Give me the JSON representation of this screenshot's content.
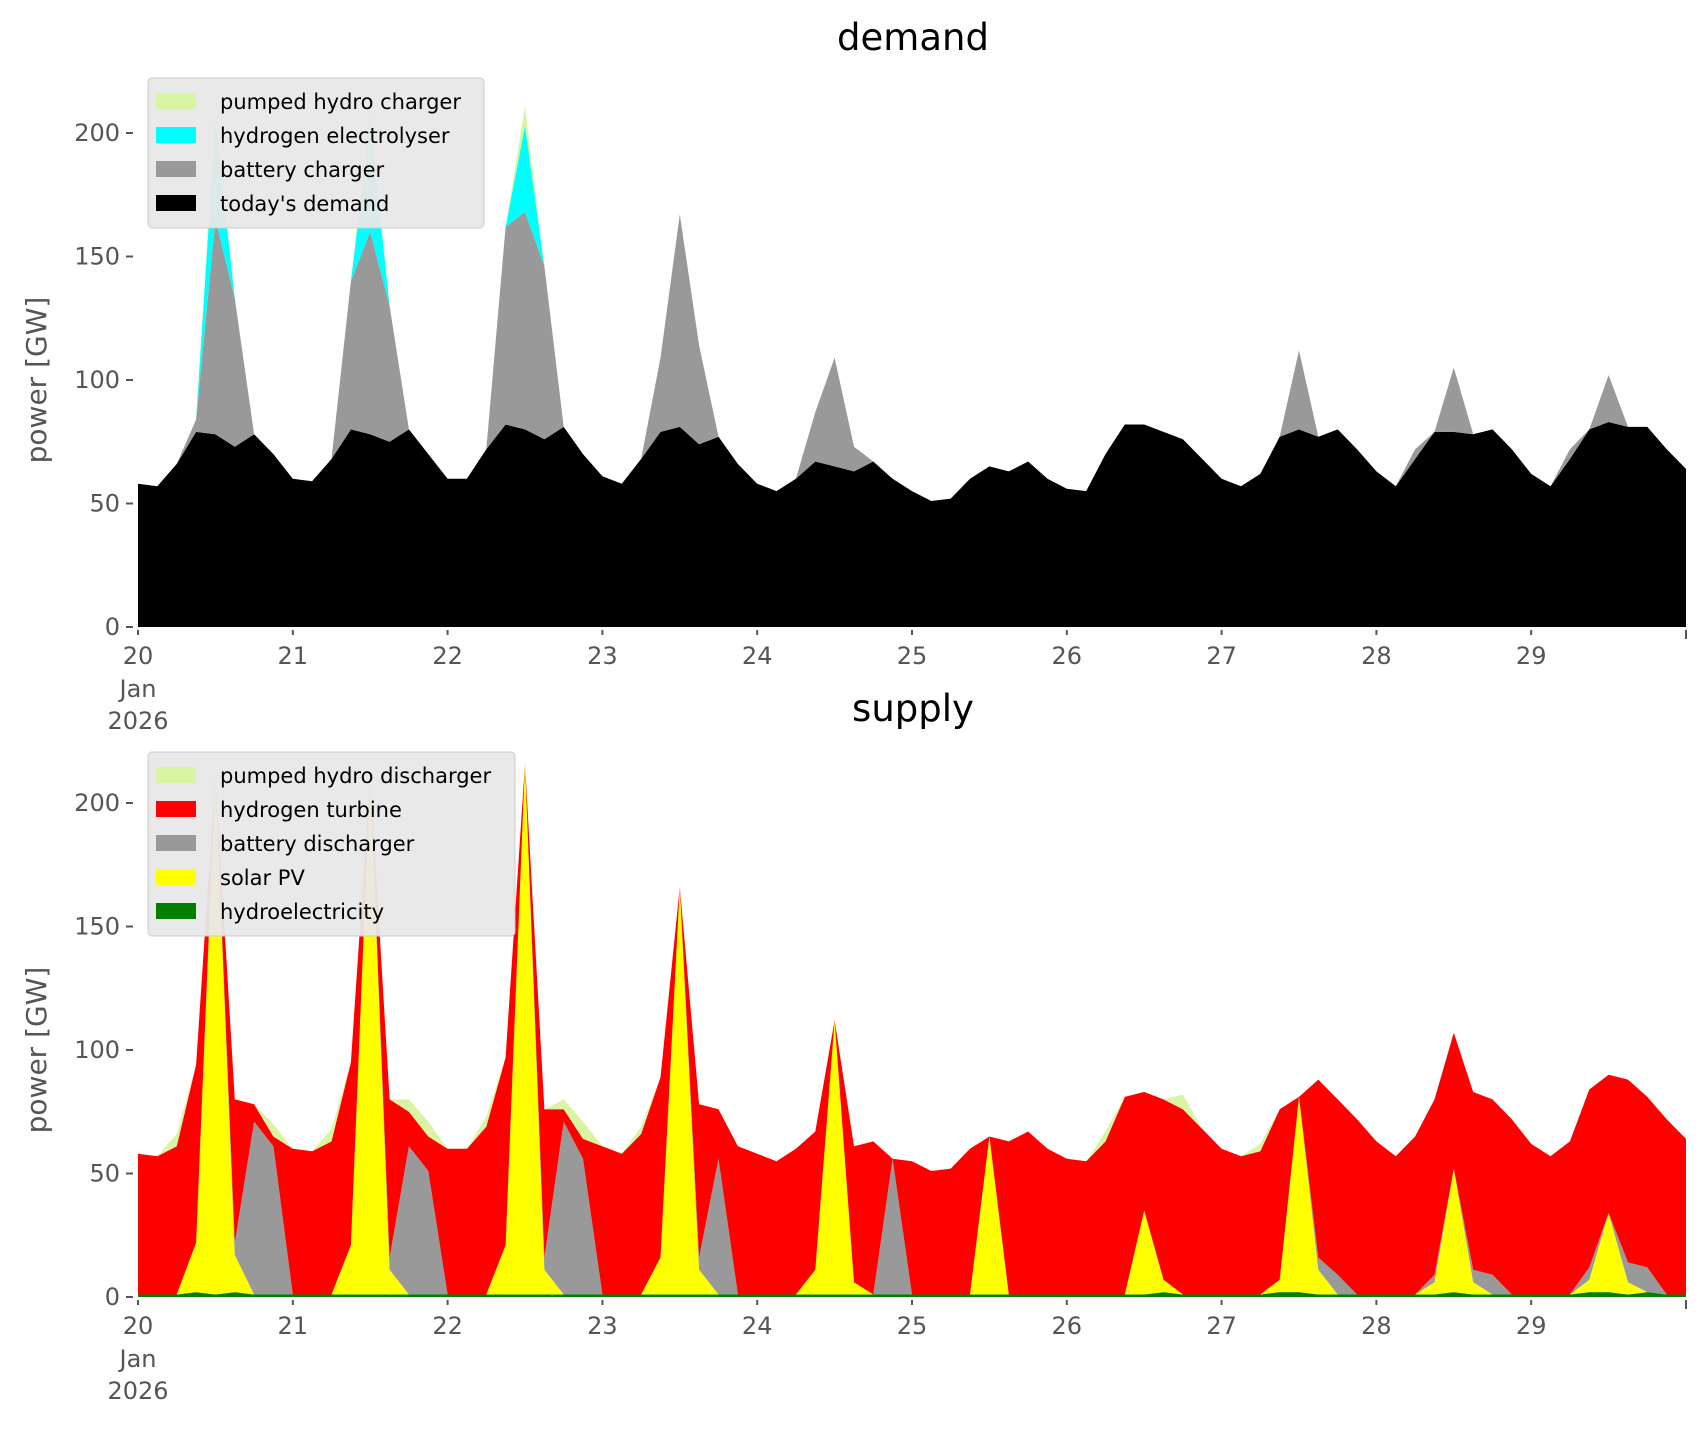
{
  "chart_data": [
    {
      "type": "area",
      "title": "demand",
      "xlabel": "",
      "ylabel": "power [GW]",
      "ylim": [
        0,
        220
      ],
      "yticks": [
        "0",
        "50",
        "100",
        "150",
        "200"
      ],
      "ytick_values": [
        0,
        50,
        100,
        150,
        200
      ],
      "xticks": [
        "20",
        "21",
        "22",
        "23",
        "24",
        "25",
        "26",
        "27",
        "28",
        "29"
      ],
      "xtick_sub": [
        "Jan",
        "2026"
      ],
      "x_unit": "day of Jan 2026, 3-hour steps",
      "x_range": [
        20,
        30
      ],
      "legend_position": "upper-left",
      "series": [
        {
          "name": "today's demand",
          "color": "#000000",
          "values": [
            58,
            57,
            66,
            79,
            78,
            73,
            78,
            70,
            60,
            59,
            68,
            80,
            78,
            75,
            80,
            70,
            60,
            60,
            72,
            82,
            80,
            76,
            81,
            70,
            61,
            58,
            68,
            79,
            81,
            74,
            77,
            66,
            58,
            55,
            60,
            67,
            65,
            63,
            67,
            60,
            55,
            51,
            52,
            60,
            65,
            63,
            67,
            60,
            56,
            55,
            70,
            82,
            82,
            79,
            76,
            68,
            60,
            57,
            62,
            77,
            80,
            77,
            80,
            72,
            63,
            57,
            68,
            79,
            79,
            78,
            80,
            72,
            62,
            57,
            68,
            80,
            83,
            81,
            81,
            72,
            64
          ]
        },
        {
          "name": "battery charger",
          "color": "#999999",
          "values": [
            0,
            0,
            0,
            5,
            87,
            60,
            0,
            0,
            0,
            0,
            0,
            60,
            82,
            55,
            0,
            0,
            0,
            0,
            0,
            80,
            88,
            70,
            0,
            0,
            0,
            0,
            0,
            30,
            86,
            40,
            0,
            0,
            0,
            0,
            0,
            20,
            44,
            10,
            0,
            0,
            0,
            0,
            0,
            0,
            0,
            0,
            0,
            0,
            0,
            0,
            0,
            0,
            0,
            0,
            0,
            0,
            0,
            0,
            0,
            0,
            32,
            0,
            0,
            0,
            0,
            0,
            4,
            0,
            26,
            0,
            0,
            0,
            0,
            0,
            4,
            0,
            19,
            0,
            0,
            0,
            0
          ]
        },
        {
          "name": "hydrogen electrolyser",
          "color": "#00ffff",
          "values": [
            0,
            0,
            0,
            0,
            40,
            0,
            0,
            0,
            0,
            0,
            0,
            0,
            45,
            0,
            0,
            0,
            0,
            0,
            0,
            0,
            35,
            0,
            0,
            0,
            0,
            0,
            0,
            0,
            0,
            0,
            0,
            0,
            0,
            0,
            0,
            0,
            0,
            0,
            0,
            0,
            0,
            0,
            0,
            0,
            0,
            0,
            0,
            0,
            0,
            0,
            0,
            0,
            0,
            0,
            0,
            0,
            0,
            0,
            0,
            0,
            0,
            0,
            0,
            0,
            0,
            0,
            0,
            0,
            0,
            0,
            0,
            0,
            0,
            0,
            0,
            0,
            0,
            0,
            0,
            0,
            0
          ]
        },
        {
          "name": "pumped hydro charger",
          "color": "#d9f5a3",
          "values": [
            0,
            0,
            0,
            0,
            5,
            0,
            0,
            0,
            0,
            0,
            0,
            0,
            5,
            0,
            0,
            0,
            0,
            0,
            0,
            0,
            8,
            0,
            0,
            0,
            0,
            0,
            0,
            0,
            0,
            0,
            0,
            0,
            0,
            0,
            0,
            0,
            0,
            0,
            0,
            0,
            0,
            0,
            0,
            0,
            0,
            0,
            0,
            0,
            0,
            0,
            0,
            0,
            0,
            0,
            0,
            0,
            0,
            0,
            0,
            0,
            0,
            0,
            0,
            0,
            0,
            0,
            0,
            0,
            0,
            0,
            0,
            0,
            0,
            0,
            0,
            0,
            0,
            0,
            0,
            0,
            0
          ]
        }
      ]
    },
    {
      "type": "area",
      "title": "supply",
      "xlabel": "",
      "ylabel": "power [GW]",
      "ylim": [
        0,
        220
      ],
      "yticks": [
        "0",
        "50",
        "100",
        "150",
        "200"
      ],
      "ytick_values": [
        0,
        50,
        100,
        150,
        200
      ],
      "xticks": [
        "20",
        "21",
        "22",
        "23",
        "24",
        "25",
        "26",
        "27",
        "28",
        "29"
      ],
      "xtick_sub": [
        "Jan",
        "2026"
      ],
      "x_unit": "day of Jan 2026, 3-hour steps",
      "x_range": [
        20,
        30
      ],
      "legend_position": "upper-left",
      "series": [
        {
          "name": "hydroelectricity",
          "color": "#008000",
          "values": [
            1,
            1,
            1,
            2,
            1,
            2,
            1,
            1,
            1,
            1,
            1,
            1,
            1,
            1,
            1,
            1,
            1,
            1,
            1,
            1,
            1,
            1,
            1,
            1,
            1,
            1,
            1,
            1,
            1,
            1,
            1,
            1,
            1,
            1,
            1,
            1,
            1,
            1,
            1,
            1,
            1,
            1,
            1,
            1,
            1,
            1,
            1,
            1,
            1,
            1,
            1,
            1,
            1,
            2,
            1,
            1,
            1,
            1,
            1,
            2,
            2,
            1,
            1,
            1,
            1,
            1,
            1,
            1,
            2,
            1,
            1,
            1,
            1,
            1,
            1,
            2,
            2,
            1,
            2,
            1,
            1
          ]
        },
        {
          "name": "solar PV",
          "color": "#ffff00",
          "values": [
            0,
            0,
            0,
            20,
            210,
            15,
            0,
            0,
            0,
            0,
            0,
            20,
            210,
            10,
            0,
            0,
            0,
            0,
            0,
            20,
            215,
            10,
            0,
            0,
            0,
            0,
            0,
            15,
            165,
            10,
            0,
            0,
            0,
            0,
            0,
            10,
            111,
            5,
            0,
            0,
            0,
            0,
            0,
            0,
            64,
            0,
            0,
            0,
            0,
            0,
            0,
            0,
            34,
            5,
            0,
            0,
            0,
            0,
            0,
            5,
            79,
            10,
            0,
            0,
            0,
            0,
            0,
            5,
            50,
            5,
            0,
            0,
            0,
            0,
            0,
            5,
            32,
            5,
            0,
            0,
            0
          ]
        },
        {
          "name": "battery discharger",
          "color": "#999999",
          "values": [
            0,
            0,
            0,
            0,
            0,
            5,
            70,
            60,
            0,
            0,
            0,
            0,
            0,
            5,
            60,
            50,
            0,
            0,
            0,
            0,
            0,
            5,
            70,
            55,
            0,
            0,
            0,
            0,
            0,
            5,
            55,
            0,
            0,
            0,
            0,
            0,
            0,
            0,
            0,
            55,
            0,
            0,
            0,
            0,
            0,
            0,
            0,
            0,
            0,
            0,
            0,
            0,
            0,
            0,
            0,
            0,
            0,
            0,
            0,
            0,
            0,
            5,
            8,
            0,
            0,
            0,
            0,
            3,
            0,
            5,
            8,
            0,
            0,
            0,
            0,
            5,
            0,
            8,
            10,
            0,
            0
          ]
        },
        {
          "name": "hydrogen turbine",
          "color": "#ff0000",
          "values": [
            57,
            56,
            60,
            72,
            0,
            58,
            7,
            4,
            59,
            58,
            62,
            74,
            0,
            64,
            14,
            14,
            59,
            59,
            68,
            76,
            0,
            60,
            5,
            8,
            60,
            57,
            65,
            73,
            0,
            62,
            20,
            60,
            57,
            54,
            59,
            56,
            0,
            55,
            62,
            0,
            54,
            50,
            51,
            59,
            0,
            62,
            66,
            59,
            55,
            54,
            62,
            80,
            48,
            73,
            75,
            67,
            59,
            56,
            58,
            69,
            0,
            72,
            71,
            71,
            62,
            56,
            64,
            71,
            55,
            72,
            71,
            71,
            61,
            56,
            62,
            72,
            56,
            74,
            69,
            71,
            63
          ]
        },
        {
          "name": "pumped hydro discharger",
          "color": "#d9f5a3",
          "values": [
            0,
            0,
            5,
            0,
            0,
            0,
            0,
            5,
            0,
            0,
            5,
            0,
            0,
            0,
            5,
            6,
            0,
            0,
            4,
            0,
            0,
            0,
            4,
            7,
            0,
            0,
            3,
            0,
            0,
            0,
            0,
            0,
            0,
            0,
            0,
            0,
            0,
            0,
            0,
            0,
            0,
            0,
            0,
            0,
            0,
            0,
            0,
            0,
            0,
            0,
            4,
            0,
            0,
            0,
            6,
            0,
            0,
            0,
            3,
            0,
            0,
            0,
            0,
            0,
            0,
            0,
            0,
            0,
            0,
            0,
            0,
            0,
            0,
            0,
            0,
            0,
            0,
            0,
            0,
            0,
            0
          ]
        }
      ]
    }
  ],
  "axes": {
    "top": {
      "title": "demand",
      "ylabel": "power [GW]"
    },
    "bottom": {
      "title": "supply",
      "ylabel": "power [GW]"
    }
  },
  "legends": {
    "top": [
      "pumped hydro charger",
      "hydrogen electrolyser",
      "battery charger",
      "today's demand"
    ],
    "bottom": [
      "pumped hydro discharger",
      "hydrogen turbine",
      "battery discharger",
      "solar PV",
      "hydroelectricity"
    ]
  }
}
